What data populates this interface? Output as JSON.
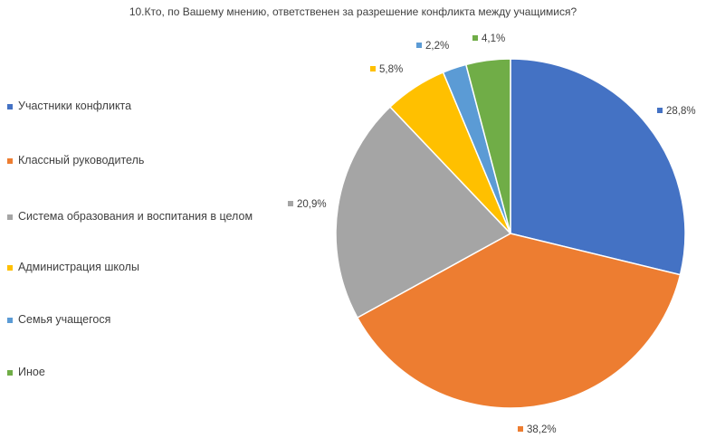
{
  "chart_data": {
    "type": "pie",
    "title": "10.Кто, по Вашему мнению, ответственен за разрешение конфликта между учащимися?",
    "categories": [
      "Участники конфликта",
      "Классный руководитель",
      "Система образования и воспитания в целом",
      "Администрация школы",
      "Семья учащегося",
      "Иное"
    ],
    "values": [
      28.8,
      38.2,
      20.9,
      5.8,
      2.2,
      4.1
    ],
    "value_labels": [
      "28,8%",
      "38,2%",
      "20,9%",
      "5,8%",
      "2,2%",
      "4,1%"
    ],
    "colors": [
      "#4472c4",
      "#ed7d31",
      "#a5a5a5",
      "#ffc000",
      "#5b9bd5",
      "#70ad47"
    ],
    "legend_position": "left"
  }
}
